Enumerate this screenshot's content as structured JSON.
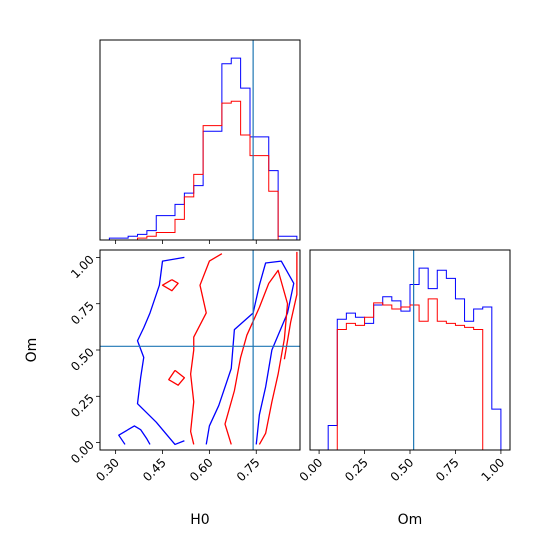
{
  "chart_data": {
    "type": "corner",
    "parameters": [
      "H0",
      "Om"
    ],
    "truth": {
      "H0": 0.74,
      "Om": 0.52
    },
    "series_colors": {
      "blue": "#0000ff",
      "red": "#ff0000",
      "truth": "#1f77b4"
    },
    "h0_hist": {
      "xlabel": "H0",
      "xlim": [
        0.25,
        0.89
      ],
      "ticks": [
        0.3,
        0.45,
        0.6,
        0.75
      ],
      "tick_labels": [],
      "bin_edges": [
        0.25,
        0.28,
        0.31,
        0.34,
        0.37,
        0.4,
        0.43,
        0.46,
        0.49,
        0.52,
        0.55,
        0.58,
        0.61,
        0.64,
        0.67,
        0.7,
        0.73,
        0.76,
        0.79,
        0.82,
        0.85,
        0.88
      ],
      "blue_counts": [
        0,
        1,
        1,
        2,
        3,
        5,
        13,
        13,
        19,
        25,
        29,
        58,
        58,
        94,
        97,
        81,
        55,
        55,
        37,
        2,
        2
      ],
      "red_counts": [
        0,
        0,
        0,
        0,
        1,
        2,
        4,
        4,
        11,
        23,
        35,
        61,
        61,
        73,
        74,
        56,
        45,
        45,
        26,
        0,
        0
      ]
    },
    "om_hist": {
      "xlabel": "Om",
      "xlim": [
        -0.05,
        1.05
      ],
      "ticks": [
        0.0,
        0.25,
        0.5,
        0.75,
        1.0
      ],
      "tick_labels": [
        "0.00",
        "0.25",
        "0.50",
        "0.75",
        "1.00"
      ],
      "bin_edges": [
        0.0,
        0.05,
        0.1,
        0.15,
        0.2,
        0.25,
        0.3,
        0.35,
        0.4,
        0.45,
        0.5,
        0.55,
        0.6,
        0.65,
        0.7,
        0.75,
        0.8,
        0.85,
        0.9,
        0.95,
        1.0
      ],
      "blue_counts": [
        0,
        12,
        64,
        67,
        65,
        62,
        71,
        75,
        73,
        68,
        81,
        89,
        79,
        88,
        84,
        74,
        63,
        69,
        70,
        20
      ],
      "red_counts": [
        0,
        0,
        59,
        62,
        61,
        65,
        72,
        71,
        69,
        70,
        71,
        63,
        74,
        63,
        62,
        61,
        60,
        59,
        0,
        0
      ]
    },
    "contour_panel": {
      "xlabel": "H0",
      "ylabel": "Om",
      "xlim": [
        0.25,
        0.89
      ],
      "ylim": [
        -0.04,
        1.04
      ],
      "xticks": [
        0.3,
        0.45,
        0.6,
        0.75
      ],
      "xtick_labels": [
        "0.30",
        "0.45",
        "0.60",
        "0.75"
      ],
      "yticks": [
        0.0,
        0.25,
        0.5,
        0.75,
        1.0
      ],
      "ytick_labels": [
        "0.00",
        "0.25",
        "0.50",
        "0.75",
        "1.00"
      ],
      "contours": [
        {
          "color": "blue",
          "points": [
            [
              0.52,
              1.0
            ],
            [
              0.45,
              0.98
            ],
            [
              0.44,
              0.85
            ],
            [
              0.41,
              0.7
            ],
            [
              0.39,
              0.62
            ],
            [
              0.37,
              0.55
            ],
            [
              0.39,
              0.46
            ],
            [
              0.38,
              0.35
            ],
            [
              0.37,
              0.21
            ],
            [
              0.43,
              0.11
            ],
            [
              0.47,
              0.03
            ],
            [
              0.49,
              -0.01
            ],
            [
              0.52,
              0.01
            ]
          ]
        },
        {
          "color": "blue",
          "points": [
            [
              0.33,
              -0.01
            ],
            [
              0.31,
              0.04
            ],
            [
              0.36,
              0.09
            ],
            [
              0.38,
              0.07
            ],
            [
              0.4,
              0.02
            ],
            [
              0.41,
              -0.01
            ]
          ]
        },
        {
          "color": "blue",
          "points": [
            [
              0.59,
              -0.01
            ],
            [
              0.6,
              0.09
            ],
            [
              0.63,
              0.2
            ],
            [
              0.67,
              0.4
            ],
            [
              0.68,
              0.61
            ],
            [
              0.74,
              0.7
            ],
            [
              0.76,
              0.85
            ],
            [
              0.78,
              0.97
            ],
            [
              0.83,
              0.98
            ],
            [
              0.87,
              0.86
            ],
            [
              0.85,
              0.7
            ],
            [
              0.8,
              0.5
            ],
            [
              0.78,
              0.3
            ],
            [
              0.76,
              0.15
            ],
            [
              0.75,
              -0.01
            ]
          ]
        },
        {
          "color": "red",
          "points": [
            [
              0.64,
              1.02
            ],
            [
              0.6,
              0.98
            ],
            [
              0.57,
              0.85
            ],
            [
              0.59,
              0.7
            ],
            [
              0.55,
              0.57
            ],
            [
              0.55,
              0.5
            ],
            [
              0.54,
              0.37
            ],
            [
              0.55,
              0.22
            ],
            [
              0.54,
              0.06
            ],
            [
              0.55,
              -0.01
            ]
          ]
        },
        {
          "color": "red",
          "points": [
            [
              0.67,
              -0.01
            ],
            [
              0.65,
              0.1
            ],
            [
              0.68,
              0.28
            ],
            [
              0.7,
              0.46
            ],
            [
              0.72,
              0.58
            ],
            [
              0.76,
              0.73
            ],
            [
              0.79,
              0.86
            ],
            [
              0.82,
              0.93
            ],
            [
              0.85,
              0.75
            ],
            [
              0.84,
              0.56
            ],
            [
              0.82,
              0.37
            ],
            [
              0.8,
              0.22
            ],
            [
              0.78,
              0.05
            ],
            [
              0.76,
              -0.01
            ]
          ]
        },
        {
          "color": "red",
          "points": [
            [
              0.88,
              1.03
            ],
            [
              0.88,
              0.8
            ],
            [
              0.86,
              0.65
            ],
            [
              0.84,
              0.45
            ]
          ]
        },
        {
          "color": "red",
          "points": [
            [
              0.48,
              0.88
            ],
            [
              0.45,
              0.85
            ],
            [
              0.48,
              0.82
            ],
            [
              0.5,
              0.86
            ],
            [
              0.48,
              0.88
            ]
          ]
        },
        {
          "color": "red",
          "points": [
            [
              0.49,
              0.39
            ],
            [
              0.47,
              0.34
            ],
            [
              0.5,
              0.31
            ],
            [
              0.52,
              0.35
            ],
            [
              0.49,
              0.39
            ]
          ]
        }
      ]
    }
  }
}
